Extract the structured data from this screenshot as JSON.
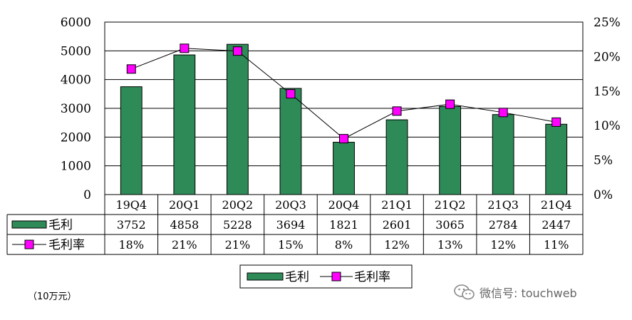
{
  "chart_data": {
    "type": "bar+line",
    "categories": [
      "19Q4",
      "20Q1",
      "20Q2",
      "20Q3",
      "20Q4",
      "21Q1",
      "21Q2",
      "21Q3",
      "21Q4"
    ],
    "series": [
      {
        "name": "毛利",
        "kind": "bar",
        "axis": "left",
        "color": "#2e8b57",
        "values": [
          3752,
          4858,
          5228,
          3694,
          1821,
          2601,
          3065,
          2784,
          2447
        ]
      },
      {
        "name": "毛利率",
        "kind": "line",
        "axis": "right",
        "marker_color": "#ff00ff",
        "values": [
          18.2,
          21.2,
          20.8,
          14.6,
          8.1,
          12.1,
          13.1,
          11.9,
          10.5
        ]
      }
    ],
    "table_rows": [
      {
        "label": "毛利",
        "cells": [
          "3752",
          "4858",
          "5228",
          "3694",
          "1821",
          "2601",
          "3065",
          "2784",
          "2447"
        ]
      },
      {
        "label": "毛利率",
        "cells": [
          "18%",
          "21%",
          "21%",
          "15%",
          "8%",
          "12%",
          "13%",
          "12%",
          "11%"
        ]
      }
    ],
    "left_axis": {
      "min": 0,
      "max": 6000,
      "step": 1000,
      "ticks": [
        "0",
        "1000",
        "2000",
        "3000",
        "4000",
        "5000",
        "6000"
      ]
    },
    "right_axis": {
      "min": 0,
      "max": 25,
      "step": 5,
      "ticks": [
        "0%",
        "5%",
        "10%",
        "15%",
        "20%",
        "25%"
      ]
    },
    "legend": [
      "毛利",
      "毛利率"
    ],
    "legend_position": "bottom",
    "grid": true
  },
  "unit_note": "（10万元）",
  "watermark": "微信号: touchweb"
}
